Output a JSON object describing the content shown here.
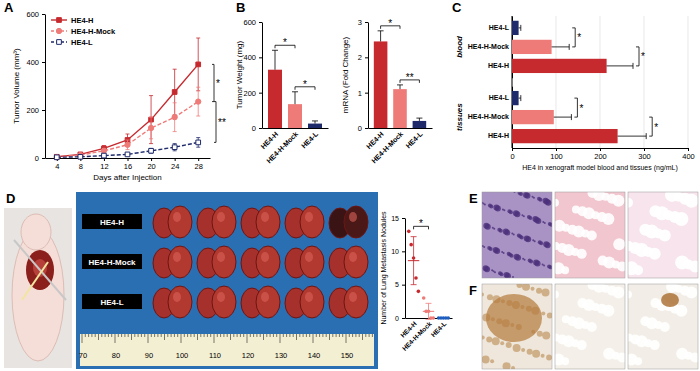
{
  "panel_labels": [
    "A",
    "B",
    "C",
    "D",
    "E",
    "F"
  ],
  "photo": {
    "row_labels": [
      "HE4-H",
      "HE4-H-Mock",
      "HE4-L"
    ],
    "ruler_labels": [
      70,
      80,
      90,
      100,
      110,
      120,
      130,
      140,
      150
    ]
  },
  "chart_data": [
    {
      "type": "line",
      "x_label": "Days after Injection",
      "y_label": "Tumor Volume (mm³)",
      "x": [
        4,
        8,
        12,
        16,
        20,
        24,
        28
      ],
      "xlim": [
        2,
        30
      ],
      "xticks": [
        4,
        8,
        12,
        16,
        20,
        24,
        28
      ],
      "ylim": [
        0,
        600
      ],
      "yticks": [
        0,
        200,
        400,
        600
      ],
      "legend": "top-left",
      "series": [
        {
          "name": "HE4-H",
          "color": "#c62a2f",
          "marker": "square",
          "line_style": "solid",
          "values": [
            5,
            15,
            40,
            75,
            160,
            275,
            390
          ],
          "errors": [
            2,
            5,
            12,
            25,
            100,
            95,
            110
          ]
        },
        {
          "name": "HE4-H-Mock",
          "color": "#ef7b78",
          "marker": "circle",
          "line_style": "dashed",
          "values": [
            4,
            12,
            30,
            55,
            125,
            170,
            235
          ],
          "errors": [
            2,
            4,
            10,
            20,
            45,
            60,
            60
          ]
        },
        {
          "name": "HE4-L",
          "color": "#1f2a6b",
          "marker": "square-open",
          "line_style": "dashed",
          "values": [
            3,
            5,
            10,
            15,
            30,
            45,
            65
          ],
          "errors": [
            1,
            2,
            4,
            6,
            10,
            15,
            20
          ]
        }
      ],
      "annotations": [
        {
          "text": "*",
          "between": [
            "HE4-H",
            "HE4-H-Mock"
          ]
        },
        {
          "text": "**",
          "between": [
            "HE4-H-Mock",
            "HE4-L"
          ]
        }
      ]
    },
    {
      "type": "bar",
      "y_label": "Tumor Weight (mg)",
      "categories": [
        "HE4-H",
        "HE4-H-Mock",
        "HE4-L"
      ],
      "values": [
        330,
        135,
        25
      ],
      "errors": [
        110,
        70,
        15
      ],
      "colors": [
        "#c62a2f",
        "#ef7b78",
        "#1f2a6b"
      ],
      "ylim": [
        0,
        600
      ],
      "yticks": [
        0,
        200,
        400,
        600
      ],
      "annotations": [
        {
          "text": "*",
          "between": [
            "HE4-H",
            "HE4-H-Mock"
          ]
        },
        {
          "text": "*",
          "between": [
            "HE4-H-Mock",
            "HE4-L"
          ]
        }
      ]
    },
    {
      "type": "bar",
      "y_label": "mRNA (Fold Change)",
      "categories": [
        "HE4-H",
        "HE4-H-Mock",
        "HE4-L"
      ],
      "values": [
        2.45,
        1.1,
        0.2
      ],
      "errors": [
        0.3,
        0.12,
        0.08
      ],
      "colors": [
        "#c62a2f",
        "#ef7b78",
        "#1f2a6b"
      ],
      "ylim": [
        0,
        3
      ],
      "yticks": [
        0,
        1,
        2,
        3
      ],
      "annotations": [
        {
          "text": "*",
          "between": [
            "HE4-H",
            "HE4-H-Mock"
          ]
        },
        {
          "text": "**",
          "between": [
            "HE4-H-Mock",
            "HE4-L"
          ]
        }
      ]
    },
    {
      "type": "bar",
      "orientation": "horizontal",
      "x_label": "HE4 in xenograft model blood and tissues (ng/mL)",
      "categories": [
        "HE4-L",
        "HE4-H-Mock",
        "HE4-H"
      ],
      "colors": [
        "#1f2a6b",
        "#ef7b78",
        "#c62a2f"
      ],
      "xlim": [
        0,
        400
      ],
      "xticks": [
        0,
        100,
        200,
        300,
        400
      ],
      "grid": true,
      "series": [
        {
          "name": "blood",
          "values": [
            15,
            90,
            215
          ],
          "errors": [
            5,
            40,
            60
          ]
        },
        {
          "name": "tissues",
          "values": [
            15,
            95,
            240
          ],
          "errors": [
            5,
            40,
            65
          ]
        }
      ],
      "annotations": [
        {
          "text": "*",
          "series": "blood",
          "between": [
            "HE4-L",
            "HE4-H-Mock"
          ]
        },
        {
          "text": "*",
          "series": "blood",
          "between": [
            "HE4-H-Mock",
            "HE4-H"
          ]
        },
        {
          "text": "*",
          "series": "tissues",
          "between": [
            "HE4-L",
            "HE4-H-Mock"
          ]
        },
        {
          "text": "*",
          "series": "tissues",
          "between": [
            "HE4-H-Mock",
            "HE4-H"
          ]
        }
      ]
    },
    {
      "type": "scatter",
      "y_label": "Number of Lung Metastasis Nodules",
      "categories": [
        "HE4-H",
        "HE4-H-Mock",
        "HE4-L"
      ],
      "values": [
        [
          13,
          11,
          9,
          6,
          4
        ],
        [
          3,
          1,
          1,
          0,
          0
        ],
        [
          0,
          0,
          0,
          0,
          0
        ]
      ],
      "means": [
        8.6,
        1,
        0
      ],
      "errors": [
        3.6,
        1.2,
        0
      ],
      "colors": [
        "#c62a2f",
        "#ef7b78",
        "#1f5fbf"
      ],
      "ylim": [
        0,
        15
      ],
      "yticks": [
        0,
        5,
        10,
        15
      ],
      "annotations": [
        {
          "text": "*",
          "between": [
            "HE4-H",
            "HE4-H-Mock"
          ]
        }
      ]
    }
  ]
}
